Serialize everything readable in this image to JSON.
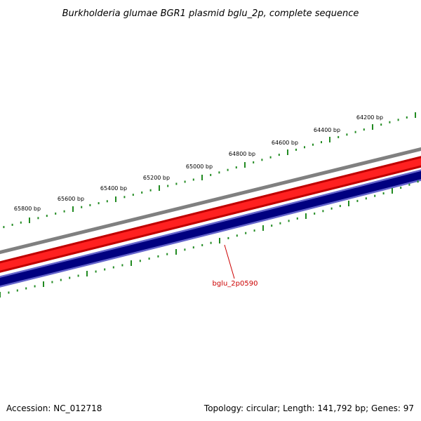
{
  "title": "Burkholderia glumae BGR1 plasmid bglu_2p, complete sequence",
  "accession_label": "Accession: NC_012718",
  "summary_label": "Topology: circular; Length: 141,792 bp; Genes: 97",
  "outer_ticks": [
    {
      "label": "64200 bp",
      "major": true
    },
    {
      "label": "64400 bp",
      "major": true
    },
    {
      "label": "64600 bp",
      "major": true
    },
    {
      "label": "64800 bp",
      "major": true
    },
    {
      "label": "65000 bp",
      "major": true
    },
    {
      "label": "65200 bp",
      "major": true
    },
    {
      "label": "65400 bp",
      "major": true
    },
    {
      "label": "65600 bp",
      "major": true
    },
    {
      "label": "65800 bp",
      "major": true
    }
  ],
  "gene_label": "bglu_2p0590",
  "colors": {
    "backbone": "#808080",
    "forward_strand": "#ff0000",
    "forward_strand_dark": "#c00000",
    "reverse_strand": "#000080",
    "reverse_strand_edge": "#6666cc",
    "ticks": "#228b22",
    "gene_label": "#cc0000"
  }
}
